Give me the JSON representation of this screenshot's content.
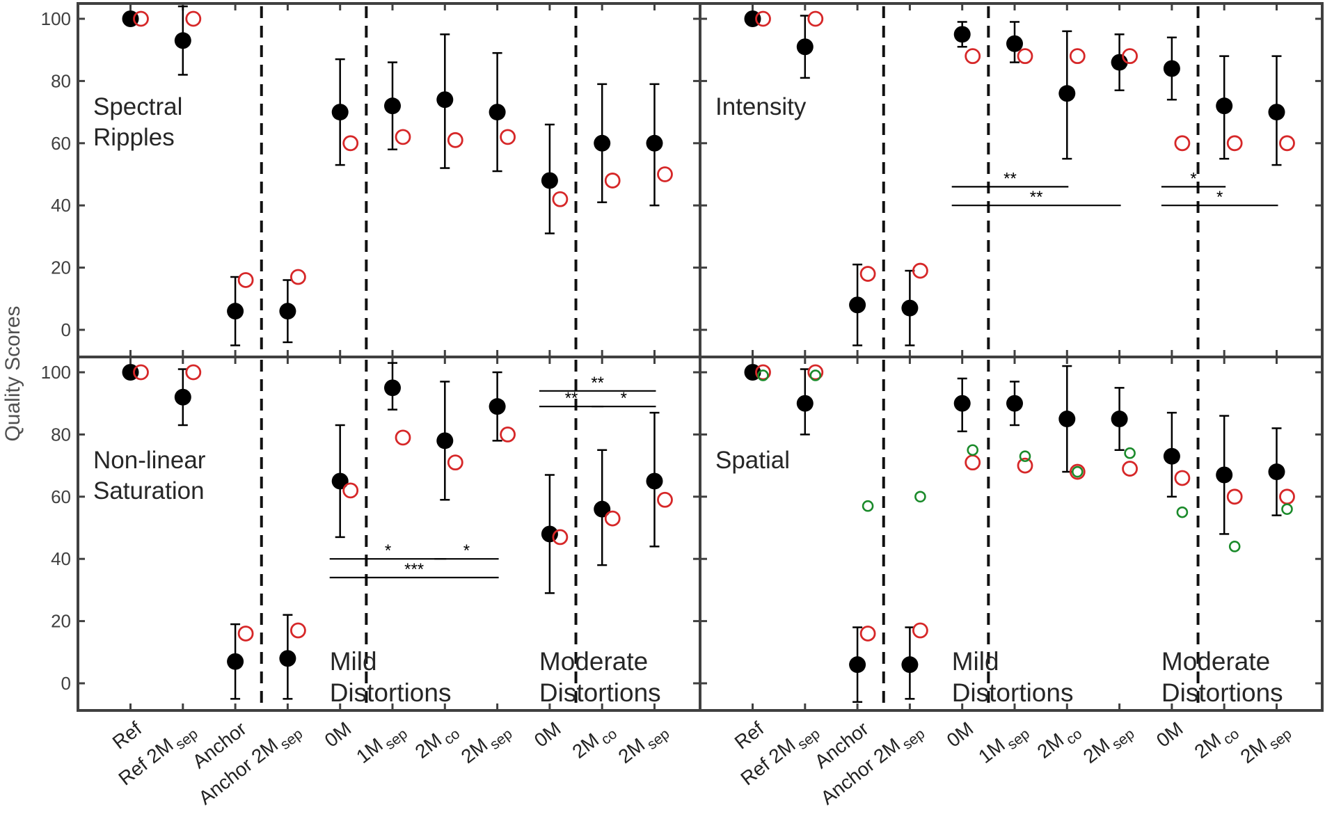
{
  "figure": {
    "ylabel": "Quality Scores",
    "colors": {
      "filled_marker": "#000000",
      "red_marker": "#d62728",
      "green_marker": "#1a8a2a",
      "frame": "#404040",
      "separator": "#111111"
    }
  },
  "chart_data": [
    {
      "type": "scatter",
      "title": "Spectral Ripples",
      "title_lines": [
        "Spectral",
        "Ripples"
      ],
      "ylabel": "Quality Scores",
      "ylim": [
        -9,
        105
      ],
      "yticks": [
        0,
        20,
        40,
        60,
        80,
        100
      ],
      "categories": [
        {
          "main": "Ref",
          "sub": ""
        },
        {
          "main": "Ref 2M",
          "sub": "sep"
        },
        {
          "main": "Anchor",
          "sub": ""
        },
        {
          "main": "Anchor 2M",
          "sub": "sep"
        },
        {
          "main": "0M",
          "sub": ""
        },
        {
          "main": "1M",
          "sub": "sep"
        },
        {
          "main": "2M",
          "sub": "co"
        },
        {
          "main": "2M",
          "sub": "sep"
        },
        {
          "main": "0M",
          "sub": ""
        },
        {
          "main": "2M",
          "sub": "co"
        },
        {
          "main": "2M",
          "sub": "sep"
        }
      ],
      "section_labels": [
        {
          "lines": [
            "Mild",
            "Distortions"
          ],
          "visible": false
        },
        {
          "lines": [
            "Moderate",
            "Distortions"
          ],
          "visible": false
        }
      ],
      "series": [
        {
          "name": "mean",
          "marker": "filled",
          "values": [
            100,
            93,
            6,
            6,
            70,
            72,
            74,
            70,
            48,
            60,
            60
          ],
          "err_low": [
            100,
            82,
            -5,
            -4,
            53,
            58,
            52,
            51,
            31,
            41,
            40
          ],
          "err_high": [
            100,
            104,
            17,
            16,
            87,
            86,
            95,
            89,
            66,
            79,
            79
          ]
        },
        {
          "name": "red",
          "marker": "open-circle",
          "values": [
            100,
            100,
            16,
            17,
            60,
            62,
            61,
            62,
            42,
            48,
            50
          ]
        }
      ],
      "significance": [],
      "show_xlabels": false
    },
    {
      "type": "scatter",
      "title": "Intensity",
      "title_lines": [
        "Intensity"
      ],
      "ylim": [
        -9,
        105
      ],
      "yticks": [
        0,
        20,
        40,
        60,
        80,
        100
      ],
      "categories": [
        {
          "main": "Ref",
          "sub": ""
        },
        {
          "main": "Ref 2M",
          "sub": "sep"
        },
        {
          "main": "Anchor",
          "sub": ""
        },
        {
          "main": "Anchor 2M",
          "sub": "sep"
        },
        {
          "main": "0M",
          "sub": ""
        },
        {
          "main": "1M",
          "sub": "sep"
        },
        {
          "main": "2M",
          "sub": "co"
        },
        {
          "main": "2M",
          "sub": "sep"
        },
        {
          "main": "0M",
          "sub": ""
        },
        {
          "main": "2M",
          "sub": "co"
        },
        {
          "main": "2M",
          "sub": "sep"
        }
      ],
      "section_labels": [
        {
          "lines": [
            "Mild",
            "Distortions"
          ],
          "visible": false
        },
        {
          "lines": [
            "Moderate",
            "Distortions"
          ],
          "visible": false
        }
      ],
      "series": [
        {
          "name": "mean",
          "marker": "filled",
          "values": [
            100,
            91,
            8,
            7,
            95,
            92,
            76,
            86,
            84,
            72,
            70
          ],
          "err_low": [
            100,
            81,
            -5,
            -5,
            91,
            86,
            55,
            77,
            74,
            55,
            53
          ],
          "err_high": [
            100,
            101,
            21,
            19,
            99,
            99,
            96,
            95,
            94,
            88,
            88
          ]
        },
        {
          "name": "red",
          "marker": "open-circle",
          "values": [
            100,
            100,
            18,
            19,
            88,
            88,
            88,
            88,
            60,
            60,
            60
          ]
        }
      ],
      "significance": [
        {
          "from": 4,
          "to": 6,
          "y": 46,
          "label": "**"
        },
        {
          "from": 4,
          "to": 7,
          "y": 40,
          "label": "**"
        },
        {
          "from": 8,
          "to": 9,
          "y": 46,
          "label": "*"
        },
        {
          "from": 8,
          "to": 10,
          "y": 40,
          "label": "*"
        }
      ],
      "show_xlabels": false
    },
    {
      "type": "scatter",
      "title": "Non-linear Saturation",
      "title_lines": [
        "Non-linear",
        "Saturation"
      ],
      "ylim": [
        -9,
        105
      ],
      "yticks": [
        0,
        20,
        40,
        60,
        80,
        100
      ],
      "categories": [
        {
          "main": "Ref",
          "sub": ""
        },
        {
          "main": "Ref 2M",
          "sub": "sep"
        },
        {
          "main": "Anchor",
          "sub": ""
        },
        {
          "main": "Anchor 2M",
          "sub": "sep"
        },
        {
          "main": "0M",
          "sub": ""
        },
        {
          "main": "1M",
          "sub": "sep"
        },
        {
          "main": "2M",
          "sub": "co"
        },
        {
          "main": "2M",
          "sub": "sep"
        },
        {
          "main": "0M",
          "sub": ""
        },
        {
          "main": "2M",
          "sub": "co"
        },
        {
          "main": "2M",
          "sub": "sep"
        }
      ],
      "section_labels": [
        {
          "lines": [
            "Mild",
            "Distortions"
          ],
          "visible": true
        },
        {
          "lines": [
            "Moderate",
            "Distortions"
          ],
          "visible": true
        }
      ],
      "series": [
        {
          "name": "mean",
          "marker": "filled",
          "values": [
            100,
            92,
            7,
            8,
            65,
            95,
            78,
            89,
            48,
            56,
            65
          ],
          "err_low": [
            100,
            83,
            -5,
            -5,
            47,
            88,
            59,
            78,
            29,
            38,
            44
          ],
          "err_high": [
            100,
            101,
            19,
            22,
            83,
            103,
            97,
            100,
            67,
            75,
            87
          ]
        },
        {
          "name": "red",
          "marker": "open-circle",
          "values": [
            100,
            100,
            16,
            17,
            62,
            79,
            71,
            80,
            47,
            53,
            59
          ]
        }
      ],
      "significance": [
        {
          "from": 4,
          "to": 6,
          "y": 40,
          "label": "*"
        },
        {
          "from": 6,
          "to": 7,
          "y": 40,
          "label": "*"
        },
        {
          "from": 4,
          "to": 7,
          "y": 34,
          "label": "***"
        },
        {
          "from": 8,
          "to": 10,
          "y": 94,
          "label": "**"
        },
        {
          "from": 8,
          "to": 9,
          "y": 89,
          "label": "**"
        },
        {
          "from": 9,
          "to": 10,
          "y": 89,
          "label": "*"
        }
      ],
      "show_xlabels": true
    },
    {
      "type": "scatter",
      "title": "Spatial",
      "title_lines": [
        "Spatial"
      ],
      "ylim": [
        -9,
        105
      ],
      "yticks": [
        0,
        20,
        40,
        60,
        80,
        100
      ],
      "categories": [
        {
          "main": "Ref",
          "sub": ""
        },
        {
          "main": "Ref 2M",
          "sub": "sep"
        },
        {
          "main": "Anchor",
          "sub": ""
        },
        {
          "main": "Anchor 2M",
          "sub": "sep"
        },
        {
          "main": "0M",
          "sub": ""
        },
        {
          "main": "1M",
          "sub": "sep"
        },
        {
          "main": "2M",
          "sub": "co"
        },
        {
          "main": "2M",
          "sub": "sep"
        },
        {
          "main": "0M",
          "sub": ""
        },
        {
          "main": "2M",
          "sub": "co"
        },
        {
          "main": "2M",
          "sub": "sep"
        }
      ],
      "section_labels": [
        {
          "lines": [
            "Mild",
            "Distortions"
          ],
          "visible": true
        },
        {
          "lines": [
            "Moderate",
            "Distortions"
          ],
          "visible": true
        }
      ],
      "series": [
        {
          "name": "mean",
          "marker": "filled",
          "values": [
            100,
            90,
            6,
            6,
            90,
            90,
            85,
            85,
            73,
            67,
            68
          ],
          "err_low": [
            100,
            80,
            -6,
            -5,
            81,
            83,
            68,
            75,
            60,
            48,
            54
          ],
          "err_high": [
            100,
            101,
            18,
            18,
            98,
            97,
            102,
            95,
            87,
            86,
            82
          ]
        },
        {
          "name": "red",
          "marker": "open-circle",
          "values": [
            100,
            100,
            16,
            17,
            71,
            70,
            68,
            69,
            66,
            60,
            60
          ]
        },
        {
          "name": "green",
          "marker": "open-circle-small",
          "values": [
            99,
            99,
            57,
            60,
            75,
            73,
            68,
            74,
            55,
            44,
            56
          ]
        }
      ],
      "significance": [],
      "show_xlabels": true
    }
  ]
}
